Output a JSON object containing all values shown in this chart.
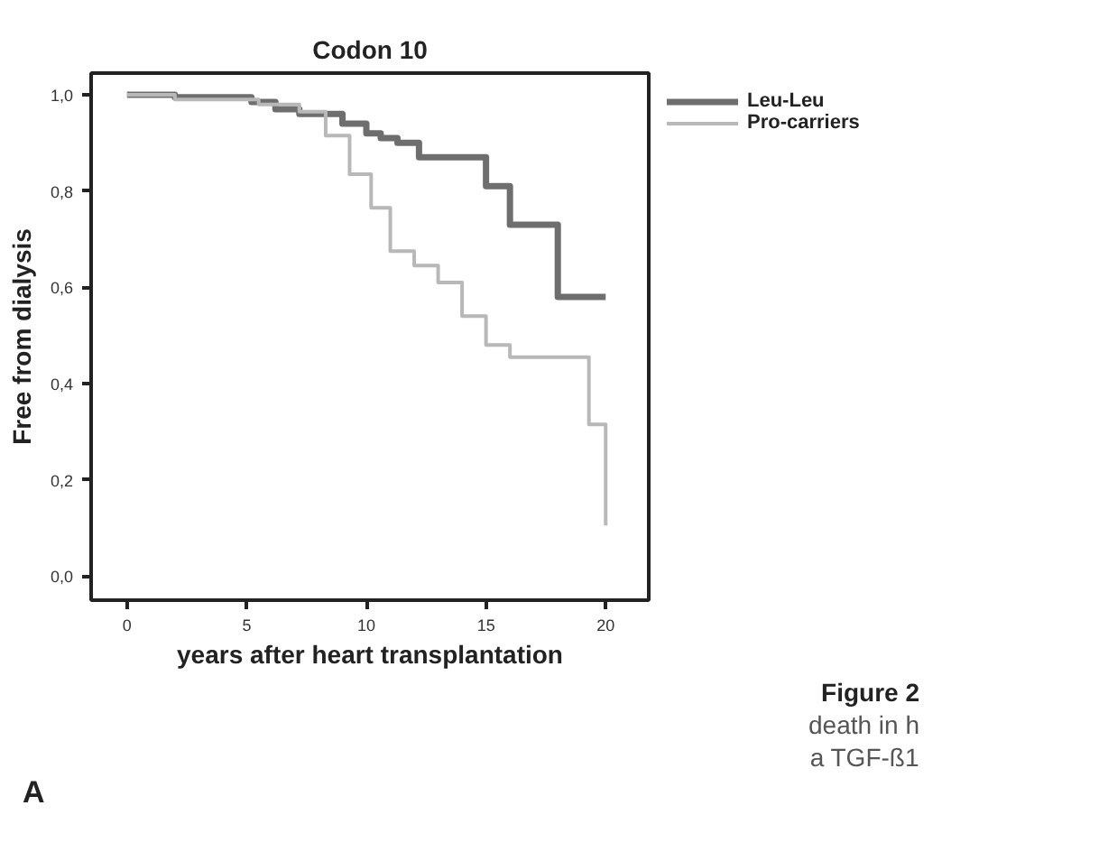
{
  "chart_data": {
    "type": "step",
    "title": "Codon 10",
    "xlabel": "years after heart transplantation",
    "ylabel": "Free from dialysis",
    "xlim": [
      -1.5,
      21.8
    ],
    "ylim": [
      -0.05,
      1.045
    ],
    "xticks": [
      0,
      5,
      10,
      15,
      20
    ],
    "yticks": [
      {
        "value": 0.0,
        "label": "0,0"
      },
      {
        "value": 0.2,
        "label": "0,2"
      },
      {
        "value": 0.4,
        "label": "0,4"
      },
      {
        "value": 0.6,
        "label": "0,6"
      },
      {
        "value": 0.8,
        "label": "0,8"
      },
      {
        "value": 1.0,
        "label": "1,0"
      }
    ],
    "grid": false,
    "legend": "right",
    "line_style": "solid",
    "series": [
      {
        "name": "Leu-Leu",
        "color": "#6e6e6e",
        "x": [
          0,
          2,
          5.2,
          6.2,
          7.2,
          9,
          10,
          10.6,
          11.3,
          12.2,
          15,
          16,
          18,
          20
        ],
        "values": [
          1.0,
          0.995,
          0.985,
          0.97,
          0.96,
          0.94,
          0.92,
          0.91,
          0.9,
          0.87,
          0.81,
          0.73,
          0.58,
          0.58
        ]
      },
      {
        "name": "Pro-carriers",
        "color": "#b8b8b8",
        "x": [
          0,
          2,
          5.5,
          7.2,
          8.3,
          9.3,
          10.2,
          11,
          12,
          13,
          14,
          15,
          16,
          19.3,
          20
        ],
        "values": [
          1.0,
          0.99,
          0.98,
          0.965,
          0.915,
          0.835,
          0.765,
          0.675,
          0.645,
          0.61,
          0.54,
          0.48,
          0.455,
          0.315,
          0.105
        ]
      }
    ],
    "annotations": [
      "A",
      "Figure 2",
      "death in h",
      "a TGF-ß1"
    ]
  }
}
